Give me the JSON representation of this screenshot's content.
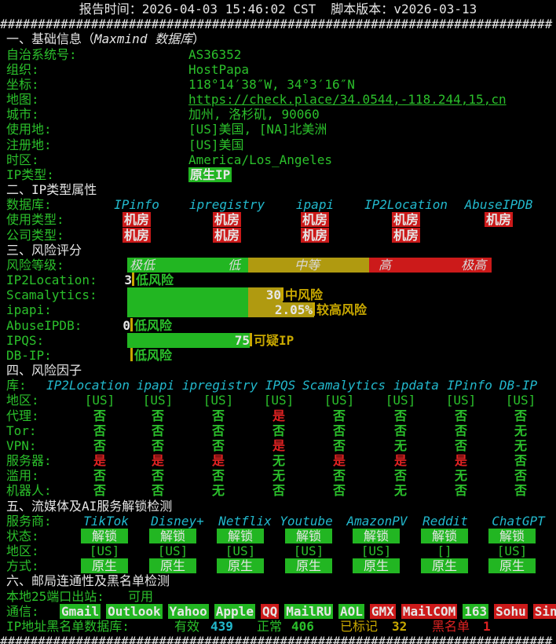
{
  "header": {
    "report_time_label": "报告时间：",
    "report_time": "2026-04-03 15:46:02 CST",
    "version_label": "脚本版本：",
    "version": "v2026-03-13"
  },
  "separator": "#########################################################################",
  "basic_info": {
    "title": "一、基础信息（",
    "source": "Maxmind 数据库",
    "title_end": "）",
    "rows": [
      {
        "label": "自治系统号:",
        "value": "AS36352"
      },
      {
        "label": "组织:",
        "value": "HostPapa"
      },
      {
        "label": "坐标:",
        "value": "118°14′38″W, 34°3′16″N"
      },
      {
        "label": "地图:",
        "value": "https://check.place/34.0544,-118.244,15,cn"
      },
      {
        "label": "城市:",
        "value": "加州, 洛杉矶, 90060"
      },
      {
        "label": "使用地:",
        "value": "[US]美国, [NA]北美洲"
      },
      {
        "label": "注册地:",
        "value": "[US]美国"
      },
      {
        "label": "时区:",
        "value": "America/Los_Angeles"
      }
    ],
    "ip_type": {
      "label": "IP类型:",
      "value": "原生IP"
    }
  },
  "ip_attributes": {
    "title": "二、IP类型属性",
    "db_label": "数据库:",
    "databases": [
      "IPinfo",
      "ipregistry",
      "ipapi",
      "IP2Location",
      "AbuseIPDB"
    ],
    "rows": [
      {
        "label": "使用类型:",
        "values": [
          "机房",
          "机房",
          "机房",
          "机房",
          "机房"
        ]
      },
      {
        "label": "公司类型:",
        "values": [
          "机房",
          "机房",
          "机房",
          "机房"
        ]
      }
    ]
  },
  "risk_score": {
    "title": "三、风险评分",
    "level_label": "风险等级:",
    "levels": [
      "极低",
      "低",
      "中等",
      "高",
      "极高"
    ],
    "rows": [
      {
        "source": "IP2Location:",
        "score": "3",
        "rating": "低风险"
      },
      {
        "source": "Scamalytics:",
        "score": "30",
        "rating": "中风险"
      },
      {
        "source": "ipapi:",
        "score": "2.05%",
        "rating": "较高风险"
      },
      {
        "source": "AbuseIPDB:",
        "score": "0",
        "rating": "低风险"
      },
      {
        "source": "IPQS:",
        "score": "75",
        "rating": "可疑IP"
      },
      {
        "source": "DB-IP:",
        "rating": "低风险"
      }
    ]
  },
  "risk_factors": {
    "title": "四、风险因子",
    "db_label": "库:",
    "databases": [
      "IP2Location",
      "ipapi",
      "ipregistry",
      "IPQS",
      "Scamalytics",
      "ipdata",
      "IPinfo",
      "DB-IP"
    ],
    "rows": [
      {
        "label": "地区:",
        "values": [
          "[US]",
          "[US]",
          "[US]",
          "[US]",
          "[US]",
          "[US]",
          "[US]",
          "[US]"
        ]
      },
      {
        "label": "代理:",
        "values": [
          "否",
          "否",
          "否",
          "是",
          "否",
          "否",
          "否",
          "否"
        ]
      },
      {
        "label": "Tor:",
        "values": [
          "否",
          "否",
          "否",
          "否",
          "否",
          "否",
          "否",
          "无"
        ]
      },
      {
        "label": "VPN:",
        "values": [
          "否",
          "否",
          "否",
          "是",
          "否",
          "无",
          "否",
          "无"
        ]
      },
      {
        "label": "服务器:",
        "values": [
          "是",
          "是",
          "是",
          "无",
          "是",
          "是",
          "是",
          "否"
        ]
      },
      {
        "label": "滥用:",
        "values": [
          "否",
          "否",
          "否",
          "无",
          "否",
          "否",
          "无",
          "否"
        ]
      },
      {
        "label": "机器人:",
        "values": [
          "否",
          "否",
          "无",
          "否",
          "否",
          "无",
          "否",
          "否"
        ]
      }
    ]
  },
  "unlock": {
    "title": "五、流媒体及AI服务解锁检测",
    "provider_label": "服务商:",
    "providers": [
      "TikTok",
      "Disney+",
      "Netflix",
      "Youtube",
      "AmazonPV",
      "Reddit",
      "ChatGPT"
    ],
    "rows": [
      {
        "label": "状态:",
        "values": [
          "解锁",
          "解锁",
          "解锁",
          "解锁",
          "解锁",
          "解锁",
          "解锁"
        ]
      },
      {
        "label": "地区:",
        "values": [
          "[US]",
          "[US]",
          "[US]",
          "[US]",
          "[US]",
          "[]",
          "[US]"
        ]
      },
      {
        "label": "方式:",
        "values": [
          "原生",
          "原生",
          "原生",
          "原生",
          "原生",
          "原生",
          "原生"
        ]
      }
    ]
  },
  "mail": {
    "title": "六、邮局连通性及黑名单检测",
    "port25_label": "本地25端口出站:",
    "port25": "可用",
    "comm_label": "通信:",
    "providers": [
      {
        "name": "Gmail",
        "ok": true
      },
      {
        "name": "Outlook",
        "ok": true
      },
      {
        "name": "Yahoo",
        "ok": true
      },
      {
        "name": "Apple",
        "ok": true
      },
      {
        "name": "QQ",
        "ok": false
      },
      {
        "name": "MailRU",
        "ok": true
      },
      {
        "name": "AOL",
        "ok": true
      },
      {
        "name": "GMX",
        "ok": false
      },
      {
        "name": "MailCOM",
        "ok": false
      },
      {
        "name": "163",
        "ok": true
      },
      {
        "name": "Sohu",
        "ok": false
      },
      {
        "name": "Sina",
        "ok": false
      }
    ],
    "blacklist_label": "IP地址黑名单数据库:",
    "stats": [
      {
        "label": "有效",
        "value": "439"
      },
      {
        "label": "正常",
        "value": "406"
      },
      {
        "label": "已标记",
        "value": "32"
      },
      {
        "label": "黑名单",
        "value": "1"
      }
    ]
  }
}
